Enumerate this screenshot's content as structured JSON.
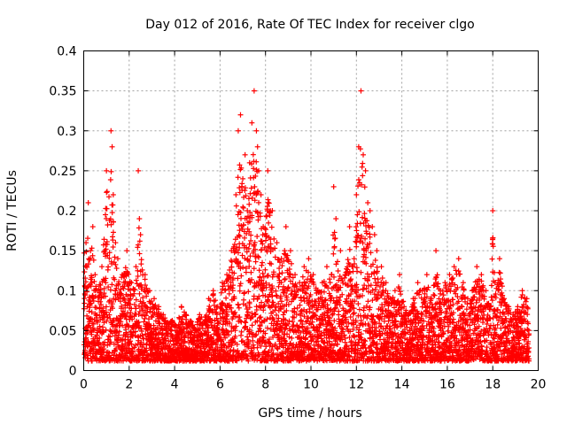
{
  "chart_data": {
    "type": "scatter",
    "title": "Day 012 of 2016, Rate Of TEC Index for receiver clgo",
    "xlabel": "GPS time / hours",
    "ylabel": "ROTI / TECUs",
    "xlim": [
      0,
      20
    ],
    "ylim": [
      0,
      0.4
    ],
    "xticks": [
      "0",
      "2",
      "4",
      "6",
      "8",
      "10",
      "12",
      "14",
      "16",
      "18",
      "20"
    ],
    "yticks": [
      "0",
      "0.05",
      "0.1",
      "0.15",
      "0.2",
      "0.25",
      "0.3",
      "0.35",
      "0.4"
    ],
    "grid": true,
    "marker": "+",
    "color": "#ff0000",
    "series": [
      {
        "name": "ROTI",
        "x": [
          0.1,
          0.2,
          0.3,
          0.4,
          0.5,
          0.6,
          0.8,
          1.0,
          1.2,
          1.25,
          1.3,
          1.4,
          1.5,
          1.7,
          1.9,
          2.1,
          2.3,
          2.4,
          2.45,
          2.5,
          2.7,
          2.9,
          3.1,
          3.3,
          3.5,
          3.7,
          3.9,
          4.1,
          4.3,
          4.5,
          4.7,
          4.9,
          5.1,
          5.3,
          5.5,
          5.7,
          5.9,
          6.1,
          6.3,
          6.5,
          6.7,
          6.8,
          6.9,
          7.0,
          7.1,
          7.2,
          7.3,
          7.4,
          7.5,
          7.6,
          7.65,
          7.7,
          7.8,
          7.9,
          8.1,
          8.3,
          8.5,
          8.7,
          8.9,
          9.1,
          9.3,
          9.5,
          9.7,
          9.9,
          10.1,
          10.3,
          10.5,
          10.7,
          10.9,
          11.0,
          11.1,
          11.3,
          11.5,
          11.7,
          11.9,
          12.0,
          12.1,
          12.2,
          12.3,
          12.4,
          12.5,
          12.6,
          12.7,
          12.8,
          12.9,
          13.1,
          13.3,
          13.5,
          13.7,
          13.9,
          14.1,
          14.3,
          14.5,
          14.7,
          14.9,
          15.1,
          15.3,
          15.5,
          15.7,
          15.9,
          16.1,
          16.3,
          16.5,
          16.7,
          16.9,
          17.1,
          17.3,
          17.5,
          17.7,
          17.9,
          18.0,
          18.1,
          18.3,
          18.5,
          18.7,
          18.9,
          19.1,
          19.3,
          19.5
        ],
        "y": [
          0.16,
          0.21,
          0.15,
          0.18,
          0.12,
          0.1,
          0.13,
          0.25,
          0.3,
          0.28,
          0.22,
          0.16,
          0.14,
          0.12,
          0.15,
          0.11,
          0.13,
          0.25,
          0.19,
          0.17,
          0.12,
          0.1,
          0.09,
          0.08,
          0.07,
          0.06,
          0.06,
          0.05,
          0.08,
          0.07,
          0.06,
          0.05,
          0.07,
          0.06,
          0.09,
          0.1,
          0.08,
          0.11,
          0.12,
          0.15,
          0.22,
          0.3,
          0.32,
          0.24,
          0.27,
          0.2,
          0.26,
          0.31,
          0.35,
          0.3,
          0.28,
          0.25,
          0.22,
          0.18,
          0.25,
          0.2,
          0.16,
          0.14,
          0.18,
          0.15,
          0.12,
          0.11,
          0.13,
          0.14,
          0.12,
          0.1,
          0.11,
          0.13,
          0.12,
          0.23,
          0.19,
          0.15,
          0.12,
          0.18,
          0.14,
          0.22,
          0.28,
          0.35,
          0.27,
          0.25,
          0.21,
          0.2,
          0.18,
          0.17,
          0.15,
          0.13,
          0.11,
          0.09,
          0.1,
          0.12,
          0.08,
          0.07,
          0.09,
          0.11,
          0.1,
          0.12,
          0.09,
          0.15,
          0.1,
          0.11,
          0.12,
          0.13,
          0.14,
          0.11,
          0.09,
          0.1,
          0.13,
          0.12,
          0.1,
          0.08,
          0.2,
          0.11,
          0.14,
          0.09,
          0.08,
          0.07,
          0.08,
          0.1,
          0.09
        ]
      }
    ]
  }
}
